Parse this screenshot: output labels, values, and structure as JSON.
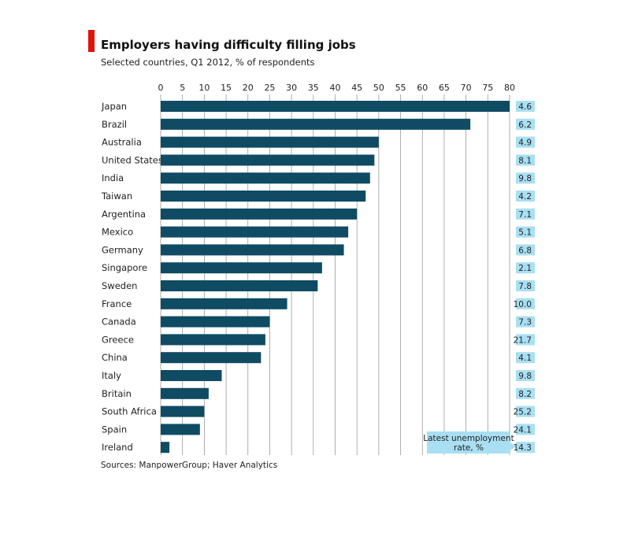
{
  "title": "Employers having difficulty filling jobs",
  "subtitle": "Selected countries, Q1 2012, % of respondents",
  "source": "Sources: ManpowerGroup; Haver Analytics",
  "colors": {
    "accent": "#e3120b",
    "bar": "#0f4b63",
    "label_box": "#a9dff2",
    "grid": "#9a9a9a"
  },
  "chart_data": {
    "type": "bar",
    "orientation": "horizontal",
    "title": "Employers having difficulty filling jobs",
    "subtitle": "Selected countries, Q1 2012, % of respondents",
    "xlim": [
      0,
      80
    ],
    "xticks": [
      0,
      5,
      10,
      15,
      20,
      25,
      30,
      35,
      40,
      45,
      50,
      55,
      60,
      65,
      70,
      75,
      80
    ],
    "grid": true,
    "categories": [
      "Japan",
      "Brazil",
      "Australia",
      "United States",
      "India",
      "Taiwan",
      "Argentina",
      "Mexico",
      "Germany",
      "Singapore",
      "Sweden",
      "France",
      "Canada",
      "Greece",
      "China",
      "Italy",
      "Britain",
      "South Africa",
      "Spain",
      "Ireland"
    ],
    "values": [
      80,
      71,
      50,
      49,
      48,
      47,
      45,
      43,
      42,
      37,
      36,
      29,
      25,
      24,
      23,
      14,
      11,
      10,
      9,
      2
    ],
    "unemployment_label": "Latest unemployment rate, %",
    "unemployment_labels": [
      "4.6",
      "6.2",
      "4.9",
      "8.1",
      "9.8",
      "4.2",
      "7.1",
      "5.1",
      "6.8",
      "2.1",
      "7.8",
      "10.0",
      "7.3",
      "21.7",
      "4.1",
      "9.8",
      "8.2",
      "25.2",
      "24.1",
      "14.3"
    ]
  }
}
